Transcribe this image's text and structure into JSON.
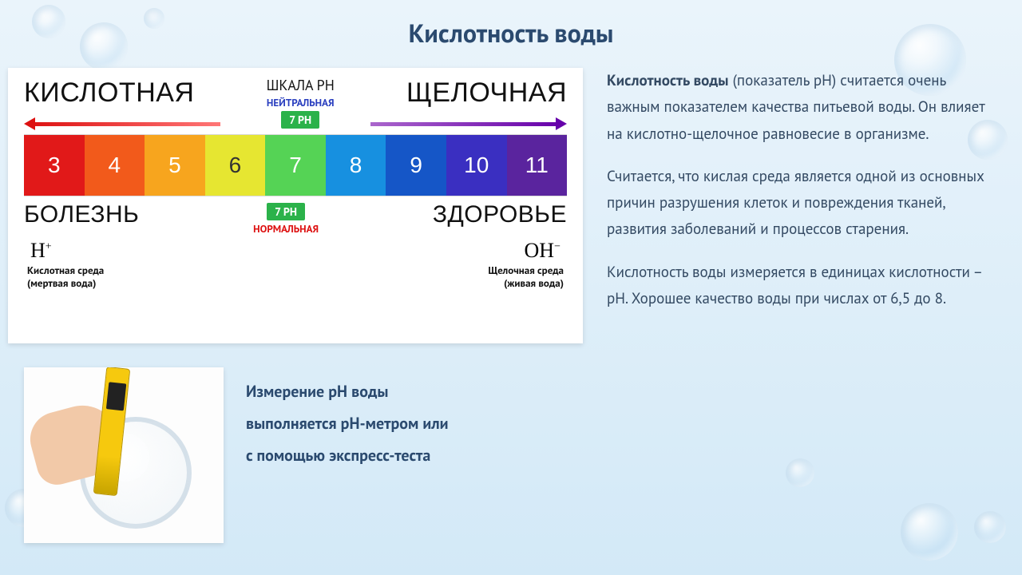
{
  "title": "Кислотность воды",
  "scale": {
    "left_big": "КИСЛОТНАЯ",
    "right_big": "ЩЕЛОЧНАЯ",
    "scale_label": "ШКАЛА PH",
    "neutral_label": "НЕЙТРАЛЬНАЯ",
    "neutral_badge": "7 PH",
    "bottom_left": "БОЛЕЗНЬ",
    "bottom_right": "ЗДОРОВЬЕ",
    "normal_badge": "7 PH",
    "normal_label": "НОРМАЛЬНАЯ",
    "ion_left_html": "H<sup>+</sup>",
    "ion_right_html": "OH<sup>−</sup>",
    "env_left_1": "Кислотная среда",
    "env_left_2": "(мертвая вода)",
    "env_right_1": "Щелочная среда",
    "env_right_2": "(живая вода)",
    "arrow_left_color": "#d11a1a",
    "arrow_right_color": "#6a0dad",
    "cells": [
      {
        "n": "3",
        "bg": "#e11919",
        "light": false
      },
      {
        "n": "4",
        "bg": "#f25a1b",
        "light": false
      },
      {
        "n": "5",
        "bg": "#f7a51e",
        "light": false
      },
      {
        "n": "6",
        "bg": "#e6e631",
        "light": true
      },
      {
        "n": "7",
        "bg": "#55d355",
        "light": false
      },
      {
        "n": "8",
        "bg": "#1790e0",
        "light": false
      },
      {
        "n": "9",
        "bg": "#1556c7",
        "light": false
      },
      {
        "n": "10",
        "bg": "#3a2fc1",
        "light": false
      },
      {
        "n": "11",
        "bg": "#5a249e",
        "light": false
      }
    ]
  },
  "caption": {
    "l1": "Измерение pH воды",
    "l2": "выполняется pH-метром или",
    "l3": "с помощью экспресс-теста"
  },
  "paragraphs": {
    "p1_bold": "Кислотность воды",
    "p1": " (показатель pH) считается очень важным показателем качества питьевой воды. Он влияет на кислотно-щелочное равновесие в организме.",
    "p2": "Считается, что кислая среда является одной из основных причин разрушения клеток и повреждения тканей, развития заболеваний и процессов старения.",
    "p3": "Кислотность воды измеряется в единицах кислотности – pH. Хорошее качество воды при числах  от 6,5 до 8."
  },
  "colors": {
    "title": "#2b4a6f",
    "body_text": "#344a63",
    "bg_top": "#eaf4fb",
    "bg_bottom": "#d3e9f7"
  }
}
